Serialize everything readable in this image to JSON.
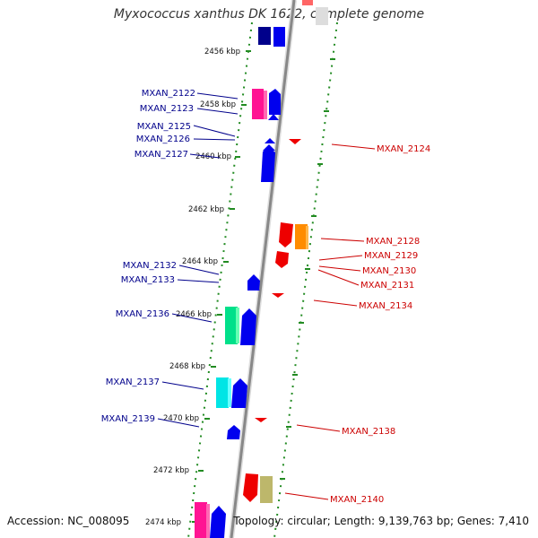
{
  "title": "Myxococcus xanthus DK 1622, complete genome",
  "accession": "Accession: NC_008095",
  "summary": "Topology: circular; Length: 9,139,763 bp; Genes: 7,410",
  "ticks": [
    "2456 kbp",
    "2458 kbp",
    "2460 kbp",
    "2462 kbp",
    "2464 kbp",
    "2466 kbp",
    "2468 kbp",
    "2470 kbp",
    "2472 kbp",
    "2474 kbp"
  ],
  "genes_left": [
    "MXAN_2122",
    "MXAN_2123",
    "MXAN_2125",
    "MXAN_2126",
    "MXAN_2127",
    "MXAN_2132",
    "MXAN_2133",
    "MXAN_2136",
    "MXAN_2137",
    "MXAN_2139"
  ],
  "genes_right": [
    "MXAN_2124",
    "MXAN_2128",
    "MXAN_2129",
    "MXAN_2130",
    "MXAN_2131",
    "MXAN_2134",
    "MXAN_2138",
    "MXAN_2140"
  ],
  "colors": {
    "forward_gene": "#0000ee",
    "reverse_gene": "#ee0000",
    "left_label": "#00008b",
    "right_label": "#cc0000",
    "tick_marks": "#228b22",
    "backbone": "#888888"
  }
}
